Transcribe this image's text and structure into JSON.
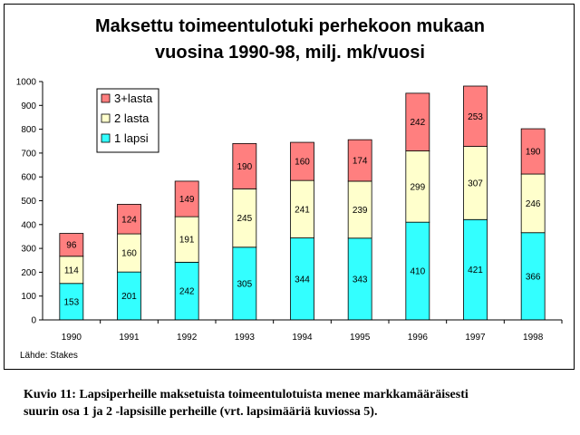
{
  "chart_title_line1": "Maksettu toimeentulotuki perhekoon mukaan",
  "chart_title_line2": "vuosina 1990-98, milj. mk/vuosi",
  "source": "Lähde: Stakes",
  "caption_line1": "Kuvio 11: Lapsiperheille maksetuista toimeentulotuista menee markkamääräisesti",
  "caption_line2": "suurin osa 1 ja 2 -lapsisille perheille (vrt. lapsimääriä kuviossa 5).",
  "chart_data": {
    "type": "bar",
    "stacked": true,
    "categories": [
      "1990",
      "1991",
      "1992",
      "1993",
      "1994",
      "1995",
      "1996",
      "1997",
      "1998"
    ],
    "series": [
      {
        "name": "1 lapsi",
        "color": "#33ffff",
        "values": [
          153,
          201,
          242,
          305,
          344,
          343,
          410,
          421,
          366
        ]
      },
      {
        "name": "2 lasta",
        "color": "#ffffcc",
        "values": [
          114,
          160,
          191,
          245,
          241,
          239,
          299,
          307,
          246
        ]
      },
      {
        "name": "3+lasta",
        "color": "#ff7f7f",
        "values": [
          96,
          124,
          149,
          190,
          160,
          174,
          242,
          253,
          190
        ]
      }
    ],
    "ylim": [
      0,
      1000
    ],
    "yticks": [
      0,
      100,
      200,
      300,
      400,
      500,
      600,
      700,
      800,
      900,
      1000
    ],
    "legend_position": "top-left",
    "grid": false
  }
}
